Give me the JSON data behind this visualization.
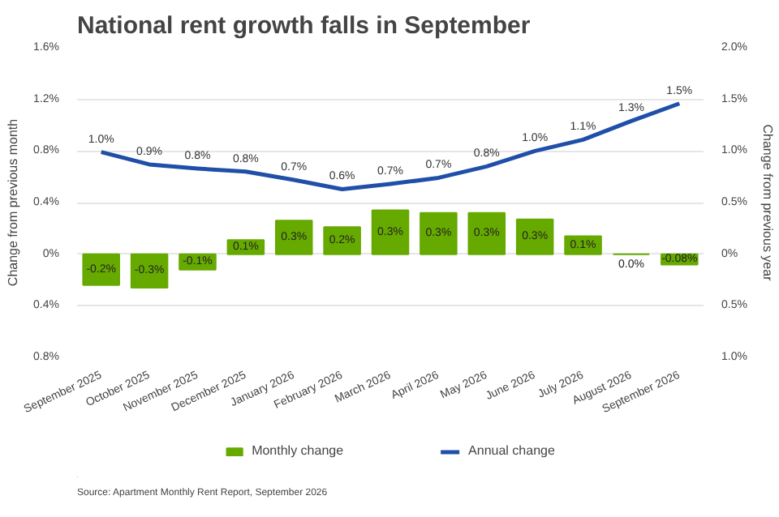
{
  "chart_data": {
    "type": "bar",
    "title": "National rent growth falls in September",
    "categories": [
      "September 2025",
      "October 2025",
      "November 2025",
      "December 2025",
      "January 2026",
      "February 2026",
      "March 2026",
      "April 2026",
      "May 2026",
      "June 2026",
      "July 2026",
      "August 2026",
      "September 2026"
    ],
    "series": [
      {
        "name": "Monthly change",
        "color": "#66aa00",
        "values": [
          -0.24,
          -0.26,
          -0.12,
          0.11,
          0.26,
          0.21,
          0.34,
          0.32,
          0.32,
          0.27,
          0.14,
          0.0,
          -0.08
        ],
        "value_labels": [
          "-0.2%",
          "-0.3%",
          "-0.1%",
          "0.1%",
          "0.3%",
          "0.2%",
          "0.3%",
          "0.3%",
          "0.3%",
          "0.3%",
          "0.1%",
          "0.0%",
          "-0.08%"
        ]
      },
      {
        "name": "Annual change",
        "type": "line",
        "axis": "y2",
        "color": "#1f4fa8",
        "values": [
          0.99,
          0.87,
          0.83,
          0.8,
          0.72,
          0.63,
          0.68,
          0.74,
          0.85,
          1.0,
          1.11,
          1.29,
          1.46
        ],
        "value_labels": [
          "1.0%",
          "0.9%",
          "0.8%",
          "0.8%",
          "0.7%",
          "0.6%",
          "0.7%",
          "0.7%",
          "0.8%",
          "1.0%",
          "1.1%",
          "1.3%",
          "1.5%"
        ]
      }
    ],
    "ylabel": "Change from previous month",
    "y2label": "Change from previous year",
    "ylim": [
      -0.8,
      1.6
    ],
    "yticks": [
      {
        "value": -0.8,
        "label": "0.8%"
      },
      {
        "value": -0.4,
        "label": "0.4%"
      },
      {
        "value": 0,
        "label": "0%"
      },
      {
        "value": 0.4,
        "label": "0.4%"
      },
      {
        "value": 0.8,
        "label": "0.8%"
      },
      {
        "value": 1.2,
        "label": "1.2%"
      },
      {
        "value": 1.6,
        "label": "1.6%"
      }
    ],
    "y2lim": [
      -1,
      2
    ],
    "y2ticks": [
      {
        "value": -1,
        "label": "1.0%"
      },
      {
        "value": -0.5,
        "label": "0.5%"
      },
      {
        "value": 0,
        "label": "0%"
      },
      {
        "value": 0.5,
        "label": "0.5%"
      },
      {
        "value": 1,
        "label": "1.0%"
      },
      {
        "value": 1.5,
        "label": "1.5%"
      },
      {
        "value": 2,
        "label": "2.0%"
      }
    ],
    "grid": "y",
    "legend": "bottom",
    "line_style": "solid",
    "marker": "none",
    "annotations": [
      "Source: Apartment Monthly Rent Report, September 2026"
    ]
  }
}
